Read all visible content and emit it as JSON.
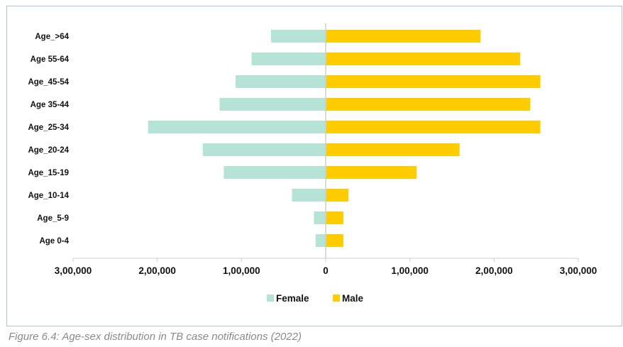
{
  "chart_data": {
    "type": "bar",
    "orientation": "horizontal-diverging",
    "categories": [
      "Age_>64",
      "Age 55-64",
      "Age_45-54",
      "Age 35-44",
      "Age_25-34",
      "Age_20-24",
      "Age_15-19",
      "Age_10-14",
      "Age_5-9",
      "Age 0-4"
    ],
    "series": [
      {
        "name": "Female",
        "color": "#b5e3d6",
        "values": [
          -65000,
          -88000,
          -107000,
          -126000,
          -211000,
          -146000,
          -121000,
          -40000,
          -14000,
          -12000
        ]
      },
      {
        "name": "Male",
        "color": "#ffcc00",
        "values": [
          184000,
          231000,
          255000,
          243000,
          255000,
          159000,
          108000,
          27000,
          21000,
          21000
        ]
      }
    ],
    "xlim": [
      -300000,
      300000
    ],
    "xticks": [
      -300000,
      -200000,
      -100000,
      0,
      100000,
      200000,
      300000
    ],
    "xtick_labels": [
      "3,00,000",
      "2,00,000",
      "1,00,000",
      "0",
      "1,00,000",
      "2,00,000",
      "3,00,000"
    ],
    "legend_position": "bottom-center",
    "grid": false
  },
  "caption": "Figure 6.4: Age-sex distribution in TB case notifications (2022)"
}
